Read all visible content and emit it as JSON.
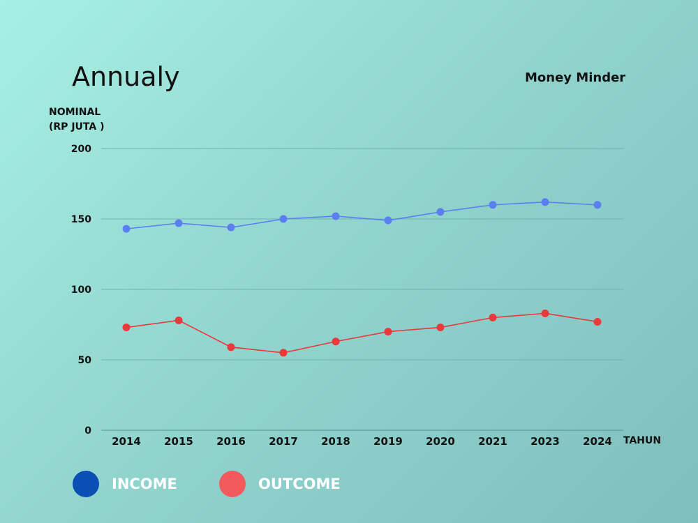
{
  "title": "Annualy",
  "brand": "Money Minder",
  "ylabel_line1": "NOMINAL",
  "ylabel_line2": "(RP JUTA )",
  "colors": {
    "income_line": "#5b7ff0",
    "outcome_line": "#e8393b",
    "grid": "#6fb3b0",
    "legend_income": "#0a4fb3",
    "legend_outcome": "#f25a5c"
  },
  "legend": {
    "income": "INCOME",
    "outcome": "OUTCOME"
  },
  "chart_data": {
    "type": "line",
    "title": "Annualy",
    "xlabel": "TAHUN",
    "ylabel": "NOMINAL (RP JUTA )",
    "x": [
      "2014",
      "2015",
      "2016",
      "2017",
      "2018",
      "2019",
      "2020",
      "2021",
      "2023",
      "2024"
    ],
    "ylim": [
      0,
      200
    ],
    "yticks": [
      0,
      50,
      100,
      150,
      200
    ],
    "grid": true,
    "legend_position": "bottom-left",
    "series": [
      {
        "name": "INCOME",
        "values": [
          143,
          147,
          144,
          150,
          152,
          149,
          155,
          160,
          162,
          160
        ]
      },
      {
        "name": "OUTCOME",
        "values": [
          73,
          78,
          59,
          55,
          63,
          70,
          73,
          80,
          83,
          77
        ]
      }
    ]
  }
}
